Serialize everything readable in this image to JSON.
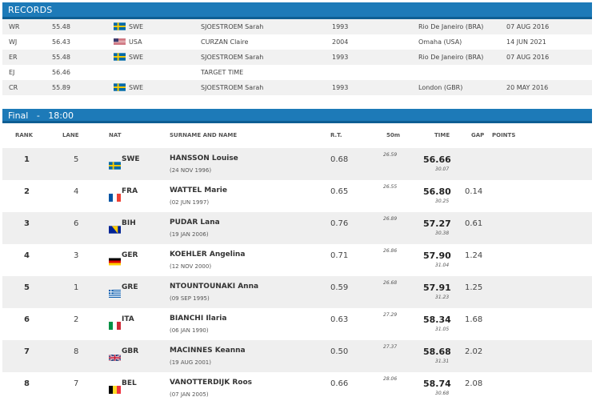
{
  "records": {
    "title": "RECORDS",
    "rows": [
      {
        "code": "WR",
        "time": "55.48",
        "flag": "swe",
        "nat": "SWE",
        "name": "SJOESTROEM Sarah",
        "year": "1993",
        "place": "Rio De Janeiro (BRA)",
        "date": "07 AUG 2016"
      },
      {
        "code": "WJ",
        "time": "56.43",
        "flag": "usa",
        "nat": "USA",
        "name": "CURZAN Claire",
        "year": "2004",
        "place": "Omaha (USA)",
        "date": "14 JUN 2021"
      },
      {
        "code": "ER",
        "time": "55.48",
        "flag": "swe",
        "nat": "SWE",
        "name": "SJOESTROEM Sarah",
        "year": "1993",
        "place": "Rio De Janeiro (BRA)",
        "date": "07 AUG 2016"
      },
      {
        "code": "EJ",
        "time": "56.46",
        "flag": "",
        "nat": "",
        "name": "TARGET TIME",
        "year": "",
        "place": "",
        "date": ""
      },
      {
        "code": "CR",
        "time": "55.89",
        "flag": "swe",
        "nat": "SWE",
        "name": "SJOESTROEM Sarah",
        "year": "1993",
        "place": "London (GBR)",
        "date": "20 MAY 2016"
      }
    ]
  },
  "final": {
    "title": "Final   -   18:00",
    "headers": {
      "rank": "RANK",
      "lane": "LANE",
      "nat": "NAT",
      "name": "SURNAME AND NAME",
      "rt": "R.T.",
      "split": "50m",
      "time": "TIME",
      "gap": "GAP",
      "points": "POINTS"
    },
    "rows": [
      {
        "rank": "1",
        "lane": "5",
        "flag": "swe",
        "nat": "SWE",
        "name": "HANSSON Louise",
        "dob": "(24 NOV 1996)",
        "rt": "0.68",
        "split": "26.59",
        "time": "56.66",
        "sub": "30.07",
        "gap": ""
      },
      {
        "rank": "2",
        "lane": "4",
        "flag": "fra",
        "nat": "FRA",
        "name": "WATTEL Marie",
        "dob": "(02 JUN 1997)",
        "rt": "0.65",
        "split": "26.55",
        "time": "56.80",
        "sub": "30.25",
        "gap": "0.14"
      },
      {
        "rank": "3",
        "lane": "6",
        "flag": "bih",
        "nat": "BIH",
        "name": "PUDAR Lana",
        "dob": "(19 JAN 2006)",
        "rt": "0.76",
        "split": "26.89",
        "time": "57.27",
        "sub": "30.38",
        "gap": "0.61"
      },
      {
        "rank": "4",
        "lane": "3",
        "flag": "ger",
        "nat": "GER",
        "name": "KOEHLER Angelina",
        "dob": "(12 NOV 2000)",
        "rt": "0.71",
        "split": "26.86",
        "time": "57.90",
        "sub": "31.04",
        "gap": "1.24"
      },
      {
        "rank": "5",
        "lane": "1",
        "flag": "gre",
        "nat": "GRE",
        "name": "NTOUNTOUNAKI Anna",
        "dob": "(09 SEP 1995)",
        "rt": "0.59",
        "split": "26.68",
        "time": "57.91",
        "sub": "31.23",
        "gap": "1.25"
      },
      {
        "rank": "6",
        "lane": "2",
        "flag": "ita",
        "nat": "ITA",
        "name": "BIANCHI Ilaria",
        "dob": "(06 JAN 1990)",
        "rt": "0.63",
        "split": "27.29",
        "time": "58.34",
        "sub": "31.05",
        "gap": "1.68"
      },
      {
        "rank": "7",
        "lane": "8",
        "flag": "gbr",
        "nat": "GBR",
        "name": "MACINNES Keanna",
        "dob": "(19 AUG 2001)",
        "rt": "0.50",
        "split": "27.37",
        "time": "58.68",
        "sub": "31.31",
        "gap": "2.02"
      },
      {
        "rank": "8",
        "lane": "7",
        "flag": "bel",
        "nat": "BEL",
        "name": "VANOTTERDIJK Roos",
        "dob": "(07 JAN 2005)",
        "rt": "0.66",
        "split": "28.06",
        "time": "58.74",
        "sub": "30.68",
        "gap": "2.08"
      }
    ]
  },
  "colors": {
    "header_bar": "#1d7ab8",
    "row_alt": "#efefef"
  }
}
